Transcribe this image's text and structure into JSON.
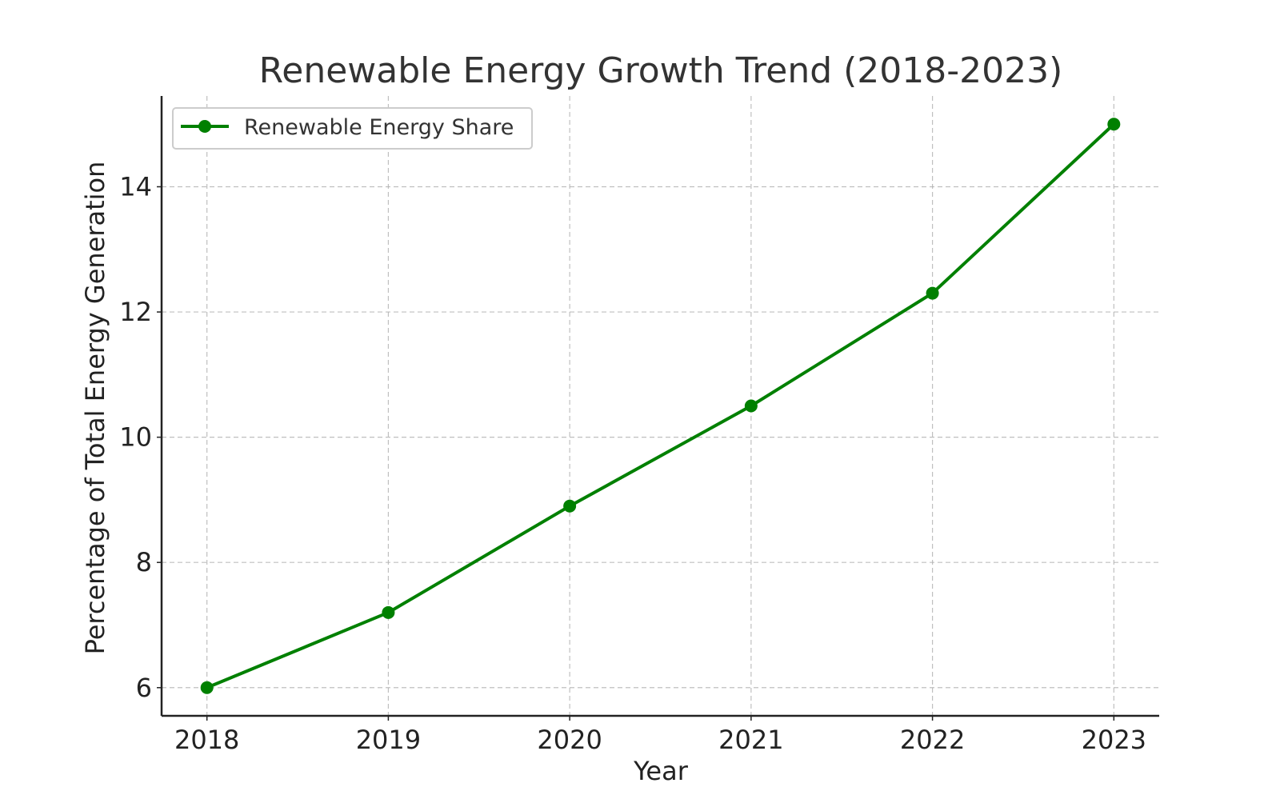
{
  "chart_data": {
    "type": "line",
    "title": "Renewable Energy Growth Trend (2018-2023)",
    "xlabel": "Year",
    "ylabel": "Percentage of Total Energy Generation",
    "x": [
      2018,
      2019,
      2020,
      2021,
      2022,
      2023
    ],
    "x_tick_labels": [
      "2018",
      "2019",
      "2020",
      "2021",
      "2022",
      "2023"
    ],
    "y_ticks": [
      6,
      8,
      10,
      12,
      14
    ],
    "y_tick_labels": [
      "6",
      "8",
      "10",
      "12",
      "14"
    ],
    "xlim": [
      2017.75,
      2023.25
    ],
    "ylim": [
      5.55,
      15.45
    ],
    "grid": true,
    "legend": {
      "placement": "top-left"
    },
    "series": [
      {
        "name": "Renewable Energy Share",
        "values": [
          6.0,
          7.2,
          8.9,
          10.5,
          12.3,
          15.0
        ],
        "color": "#008000",
        "marker": "circle"
      }
    ]
  }
}
